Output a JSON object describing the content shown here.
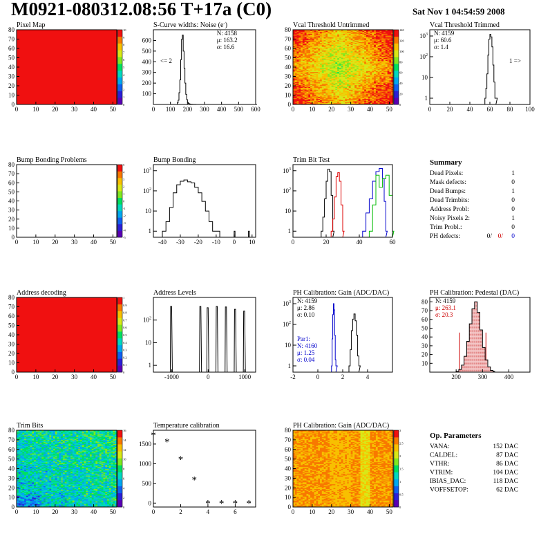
{
  "header": {
    "title": "M0921-080312.08:56 T+17a (C0)",
    "date": "Sat Nov  1 04:54:59 2008"
  },
  "chart_data": [
    {
      "id": "pixel_map",
      "type": "heatmap",
      "title": "Pixel Map",
      "xlim": [
        0,
        52
      ],
      "ylim": [
        0,
        80
      ],
      "x_ticks": [
        0,
        10,
        20,
        30,
        40,
        50
      ],
      "y_ticks": [
        0,
        10,
        20,
        30,
        40,
        50,
        60,
        70,
        80
      ],
      "fill": "uniform-max",
      "palette_max": 10,
      "palette_ticks": [
        "10",
        "9",
        "8",
        "7",
        "6",
        "5",
        "4",
        "3",
        "2",
        "1",
        "0"
      ]
    },
    {
      "id": "scurve_noise",
      "type": "line",
      "title": "S-Curve widths: Noise (e",
      "title_superscript": "-",
      "xlim": [
        0,
        600
      ],
      "ylim": [
        0,
        700
      ],
      "x_ticks": [
        0,
        100,
        200,
        300,
        400,
        500,
        600
      ],
      "y_ticks": [
        100,
        200,
        300,
        400,
        500,
        600
      ],
      "stats": [
        "N: 4158",
        "μ: 163.2",
        "σ: 16.6"
      ],
      "annotations": [
        "<= 2"
      ],
      "series": [
        {
          "color": "#000000",
          "x": [
            0,
            130,
            140,
            145,
            150,
            155,
            160,
            165,
            170,
            175,
            180,
            185,
            190,
            195,
            200,
            205,
            210,
            215,
            220,
            230,
            250,
            290,
            600
          ],
          "y": [
            0,
            0,
            15,
            40,
            110,
            230,
            420,
            610,
            650,
            500,
            340,
            200,
            95,
            45,
            20,
            10,
            5,
            3,
            2,
            1,
            0,
            0,
            0
          ]
        }
      ]
    },
    {
      "id": "vcal_untrimmed",
      "type": "heatmap",
      "title": "Vcal Threshold Untrimmed",
      "xlim": [
        0,
        52
      ],
      "ylim": [
        0,
        80
      ],
      "x_ticks": [
        0,
        10,
        20,
        30,
        40,
        50
      ],
      "y_ticks": [
        0,
        10,
        20,
        30,
        40,
        50,
        60,
        70,
        80
      ],
      "fill": "gradient-yellow-center",
      "palette_max": 140,
      "palette_ticks": [
        "140",
        "120",
        "100",
        "80",
        "60",
        "40",
        "20",
        "0"
      ]
    },
    {
      "id": "vcal_trimmed",
      "type": "line",
      "title": "Vcal Threshold Trimmed",
      "xlim": [
        0,
        100
      ],
      "ylim_log": [
        0.5,
        2000
      ],
      "log_y": true,
      "x_ticks": [
        0,
        20,
        40,
        60,
        80,
        100
      ],
      "y_ticks_log": [
        1,
        10,
        100,
        1000
      ],
      "stats": [
        "N: 4159",
        "μ: 60.6",
        "σ:  1.4"
      ],
      "annotations": [
        "1 =>"
      ],
      "series": [
        {
          "color": "#000000",
          "x": [
            55,
            56,
            57,
            58,
            59,
            60,
            61,
            62,
            63,
            64,
            65,
            66
          ],
          "y": [
            1,
            3,
            15,
            120,
            700,
            1200,
            900,
            300,
            40,
            6,
            1,
            1
          ]
        }
      ]
    },
    {
      "id": "bump_problems",
      "type": "heatmap",
      "title": "Bump Bonding Problems",
      "xlim": [
        0,
        52
      ],
      "ylim": [
        0,
        80
      ],
      "x_ticks": [
        0,
        10,
        20,
        30,
        40,
        50
      ],
      "y_ticks": [
        0,
        10,
        20,
        30,
        40,
        50,
        60,
        70,
        80
      ],
      "fill": "empty",
      "palette_max": 5,
      "palette_ticks": [
        "5",
        "4",
        "3",
        "2",
        "1",
        "0",
        "-1",
        "-2",
        "-3",
        "-4",
        "-5"
      ]
    },
    {
      "id": "bump_bonding",
      "type": "line",
      "title": "Bump Bonding",
      "xlim": [
        -45,
        12
      ],
      "ylim_log": [
        0.5,
        2000
      ],
      "log_y": true,
      "x_ticks": [
        -40,
        -30,
        -20,
        -10,
        0,
        10
      ],
      "y_ticks_log": [
        1,
        10,
        100,
        1000
      ],
      "series": [
        {
          "color": "#000000",
          "x": [
            -40,
            -38,
            -36,
            -34,
            -32,
            -30,
            -28,
            -26,
            -24,
            -22,
            -20,
            -18,
            -16,
            -14,
            -12,
            -10,
            -8,
            -6,
            0,
            0.5,
            8,
            8.5
          ],
          "y": [
            1,
            3,
            15,
            80,
            200,
            300,
            350,
            280,
            250,
            150,
            80,
            30,
            10,
            3,
            1,
            1,
            0.5,
            0.5,
            1,
            0.5,
            1,
            0.5
          ]
        }
      ]
    },
    {
      "id": "trim_bit_test",
      "type": "line",
      "title": "Trim Bit Test",
      "xlim": [
        0,
        60
      ],
      "ylim_log": [
        0.5,
        2000
      ],
      "log_y": true,
      "x_ticks": [
        0,
        20,
        40,
        60
      ],
      "y_ticks_log": [
        1,
        10,
        100,
        1000
      ],
      "series": [
        {
          "color": "#000000",
          "x": [
            17,
            18,
            19,
            20,
            21,
            22,
            23,
            24
          ],
          "y": [
            1,
            5,
            40,
            300,
            1200,
            900,
            60,
            1
          ]
        },
        {
          "color": "#dd0000",
          "x": [
            23,
            24,
            25,
            26,
            27,
            28,
            29,
            30
          ],
          "y": [
            1,
            4,
            50,
            500,
            800,
            300,
            20,
            1
          ]
        },
        {
          "color": "#0000cc",
          "x": [
            42,
            44,
            46,
            48,
            50,
            52,
            54,
            55,
            56
          ],
          "y": [
            1,
            8,
            40,
            300,
            900,
            1300,
            400,
            30,
            1
          ]
        },
        {
          "color": "#00bb00",
          "x": [
            46,
            48,
            50,
            52,
            54,
            56,
            58,
            60
          ],
          "y": [
            1,
            20,
            600,
            150,
            400,
            600,
            60,
            1
          ]
        }
      ]
    },
    {
      "id": "address_decoding",
      "type": "heatmap",
      "title": "Address decoding",
      "xlim": [
        0,
        52
      ],
      "ylim": [
        0,
        80
      ],
      "x_ticks": [
        0,
        10,
        20,
        30,
        40,
        50
      ],
      "y_ticks": [
        0,
        10,
        20,
        30,
        40,
        50,
        60,
        70,
        80
      ],
      "fill": "uniform-max",
      "palette_max": 1,
      "palette_ticks": [
        "1",
        "0.9",
        "0.8",
        "0.7",
        "0.6",
        "0.5",
        "0.4",
        "0.3",
        "0.2",
        "0.1",
        "0"
      ]
    },
    {
      "id": "address_levels",
      "type": "line",
      "title": "Address Levels",
      "xlim": [
        -1500,
        1300
      ],
      "ylim_log": [
        0.5,
        1000
      ],
      "log_y": true,
      "x_ticks": [
        -1000,
        0,
        1000
      ],
      "y_ticks_log": [
        1,
        10,
        100
      ],
      "peaks_x": [
        -1000,
        -200,
        0,
        250,
        500,
        750,
        1000
      ],
      "peak_heights": [
        400,
        400,
        350,
        400,
        380,
        300,
        250
      ],
      "series": [
        {
          "color": "#000000",
          "x": [],
          "y": []
        }
      ]
    },
    {
      "id": "ph_gain",
      "type": "line",
      "title": "PH Calibration: Gain (ADC/DAC)",
      "xlim": [
        -2,
        6
      ],
      "ylim_log": [
        0.5,
        2000
      ],
      "log_y": true,
      "x_ticks": [
        -2,
        0,
        2,
        4
      ],
      "y_ticks_log": [
        1,
        10,
        100,
        1000
      ],
      "stats": [
        "N: 4159",
        "μ: 2.86",
        "σ: 0.10"
      ],
      "stats_par1": [
        "Par1:",
        "N: 4160",
        "μ: 1.25",
        "σ: 0.04"
      ],
      "series": [
        {
          "color": "#0000cc",
          "x": [
            1.1,
            1.15,
            1.2,
            1.25,
            1.3,
            1.35,
            1.4,
            1.45
          ],
          "y": [
            1,
            20,
            300,
            1000,
            500,
            30,
            2,
            1
          ]
        },
        {
          "color": "#000000",
          "x": [
            2.5,
            2.6,
            2.7,
            2.8,
            2.9,
            3.0,
            3.1,
            3.2,
            3.3
          ],
          "y": [
            1,
            6,
            50,
            180,
            320,
            150,
            30,
            3,
            1
          ]
        }
      ]
    },
    {
      "id": "ph_pedestal",
      "type": "line",
      "title": "PH Calibration: Pedestal (DAC)",
      "xlim": [
        100,
        480
      ],
      "ylim": [
        0,
        85
      ],
      "x_ticks": [
        200,
        300,
        400
      ],
      "y_ticks": [
        10,
        20,
        30,
        40,
        50,
        60,
        70,
        80
      ],
      "stats": [
        "N: 4159",
        "μ: 263.1",
        "σ: 20.3"
      ],
      "cut_lines_x": [
        213,
        313
      ],
      "series": [
        {
          "color": "#000000",
          "x": [
            200,
            210,
            220,
            230,
            240,
            250,
            260,
            270,
            280,
            290,
            300,
            310,
            320,
            330,
            340
          ],
          "y": [
            1,
            3,
            8,
            18,
            35,
            55,
            72,
            80,
            68,
            48,
            28,
            14,
            6,
            2,
            1
          ]
        }
      ]
    },
    {
      "id": "trim_bits",
      "type": "heatmap",
      "title": "Trim Bits",
      "xlim": [
        0,
        52
      ],
      "ylim": [
        0,
        80
      ],
      "x_ticks": [
        0,
        10,
        20,
        30,
        40,
        50
      ],
      "y_ticks": [
        0,
        10,
        20,
        30,
        40,
        50,
        60,
        70,
        80
      ],
      "fill": "random-green",
      "palette_max": 16,
      "palette_ticks": [
        "16",
        "14",
        "12",
        "10",
        "8",
        "6",
        "4",
        "2",
        "0"
      ]
    },
    {
      "id": "temperature_calibration",
      "type": "scatter",
      "title": "Temperature calibration",
      "xlim": [
        0,
        7.5
      ],
      "ylim": [
        -100,
        1850
      ],
      "x_ticks": [
        0,
        2,
        4,
        6
      ],
      "y_ticks": [
        0,
        500,
        1000,
        1500
      ],
      "series": [
        {
          "color": "#000000",
          "x": [
            0,
            1,
            2,
            3,
            4,
            5,
            6,
            7
          ],
          "y": [
            1730,
            1560,
            1110,
            590,
            0,
            0,
            0,
            0
          ]
        }
      ]
    },
    {
      "id": "ph_gain_map",
      "type": "heatmap",
      "title": "PH Calibration: Gain (ADC/DAC)",
      "xlim": [
        0,
        52
      ],
      "ylim": [
        0,
        80
      ],
      "x_ticks": [
        0,
        10,
        20,
        30,
        40,
        50
      ],
      "y_ticks": [
        0,
        10,
        20,
        30,
        40,
        50,
        60,
        70,
        80
      ],
      "fill": "columns-red",
      "palette_max": 3,
      "palette_ticks": [
        "3",
        "2.5",
        "2",
        "1.5",
        "1",
        "0.5",
        "0"
      ]
    }
  ],
  "summary": {
    "title": "Summary",
    "rows": [
      {
        "label": "Dead Pixels:",
        "value": "1"
      },
      {
        "label": "Mask defects:",
        "value": "0"
      },
      {
        "label": "Dead Bumps:",
        "value": "1"
      },
      {
        "label": "Dead Trimbits:",
        "value": "0"
      },
      {
        "label": "Address Probl:",
        "value": "0"
      },
      {
        "label": "Noisy Pixels 2:",
        "value": "1"
      },
      {
        "label": "Trim Probl.:",
        "value": "0"
      }
    ],
    "ph_label": "PH defects:",
    "ph_values": [
      "0/",
      "0/",
      "0"
    ]
  },
  "op_parameters": {
    "title": "Op. Parameters",
    "rows": [
      {
        "label": "VANA:",
        "value": "152 DAC"
      },
      {
        "label": "CALDEL:",
        "value": "87 DAC"
      },
      {
        "label": "VTHR:",
        "value": "86 DAC"
      },
      {
        "label": "VTRIM:",
        "value": "104 DAC"
      },
      {
        "label": "IBIAS_DAC:",
        "value": "118 DAC"
      },
      {
        "label": "VOFFSETOP:",
        "value": "62 DAC"
      }
    ]
  }
}
